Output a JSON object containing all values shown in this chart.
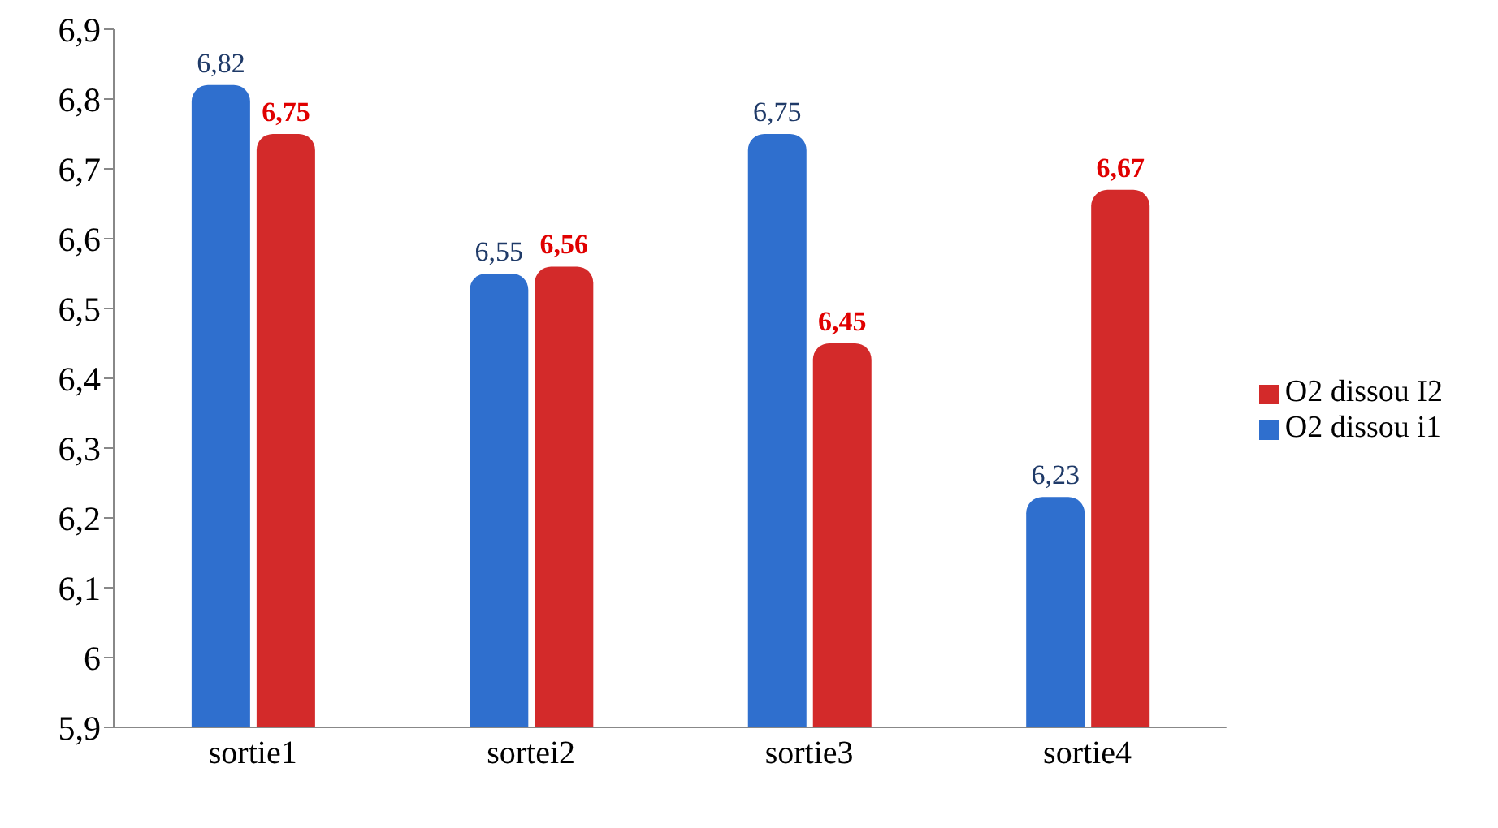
{
  "chart_data": {
    "type": "bar",
    "categories": [
      "sortie1",
      "sortei2",
      "sortie3",
      "sortie4"
    ],
    "series": [
      {
        "name": "O2 dissou i1",
        "color": "#2f6fce",
        "values": [
          6.82,
          6.55,
          6.75,
          6.23
        ],
        "value_labels": [
          "6,82",
          "6,55",
          "6,75",
          "6,23"
        ]
      },
      {
        "name": "O2 dissou I2",
        "color": "#d32a2a",
        "values": [
          6.75,
          6.56,
          6.45,
          6.67
        ],
        "value_labels": [
          "6,75",
          "6,56",
          "6,45",
          "6,67"
        ]
      }
    ],
    "ylim": [
      5.9,
      6.9
    ],
    "yticks": [
      {
        "value": 5.9,
        "label": "5,9"
      },
      {
        "value": 6,
        "label": "6"
      },
      {
        "value": 6.1,
        "label": "6,1"
      },
      {
        "value": 6.2,
        "label": "6,2"
      },
      {
        "value": 6.3,
        "label": "6,3"
      },
      {
        "value": 6.4,
        "label": "6,4"
      },
      {
        "value": 6.5,
        "label": "6,5"
      },
      {
        "value": 6.6,
        "label": "6,6"
      },
      {
        "value": 6.7,
        "label": "6,7"
      },
      {
        "value": 6.8,
        "label": "6,8"
      },
      {
        "value": 6.9,
        "label": "6,9"
      }
    ],
    "grid": false,
    "legend": "right"
  }
}
